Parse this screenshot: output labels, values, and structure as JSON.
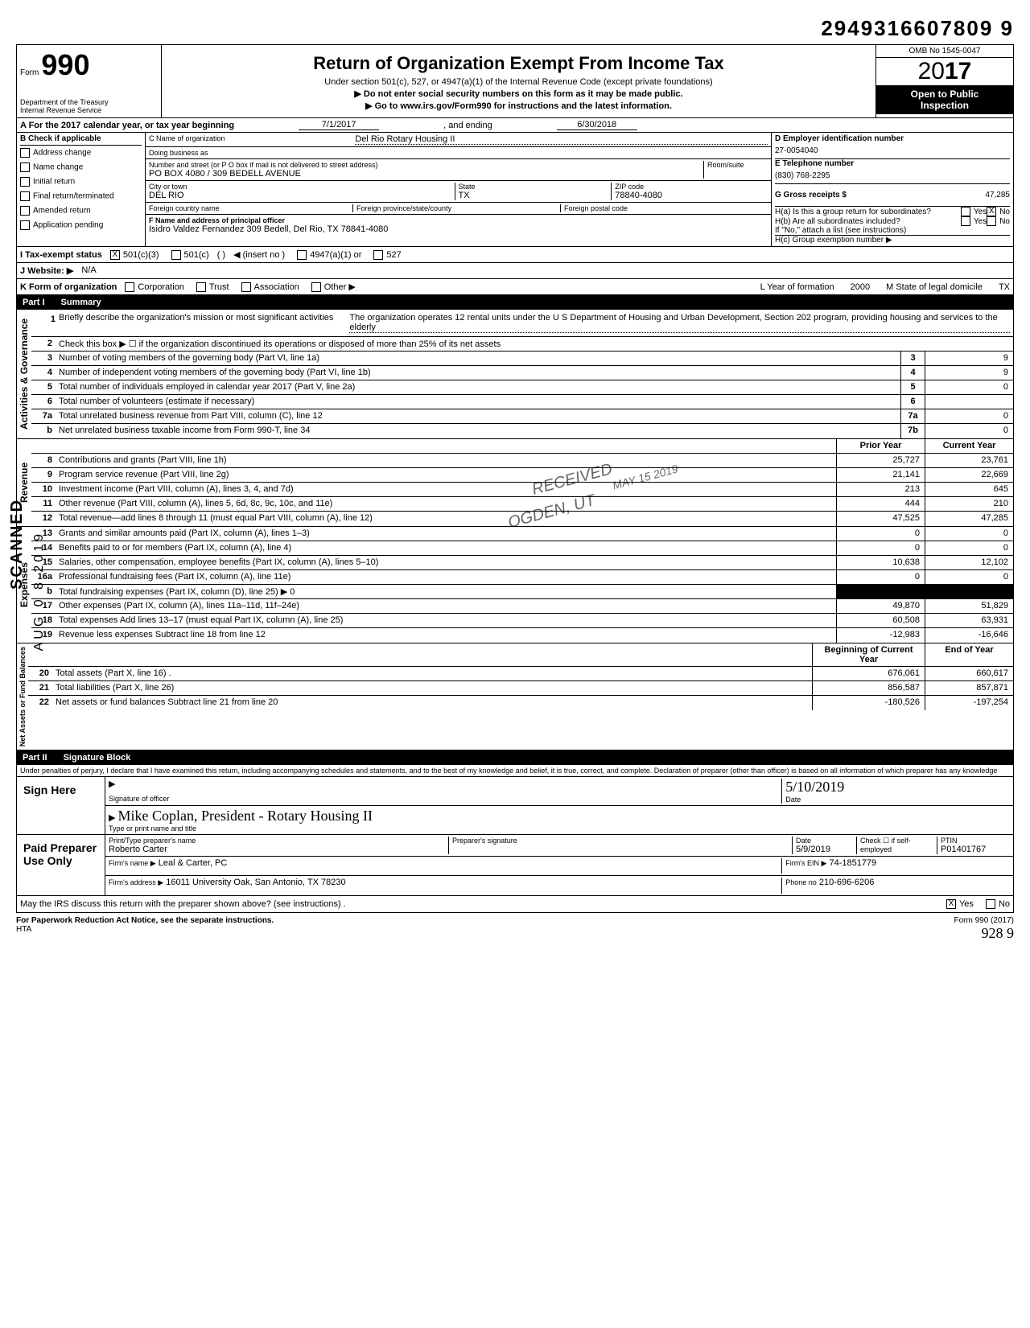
{
  "topNumber": "2949316607809 9",
  "form": {
    "prefix": "Form",
    "number": "990",
    "dept": "Department of the Treasury\nInternal Revenue Service",
    "title": "Return of Organization Exempt From Income Tax",
    "subtitle1": "Under section 501(c), 527, or 4947(a)(1) of the Internal Revenue Code (except private foundations)",
    "subtitle2": "▶ Do not enter social security numbers on this form as it may be made public.",
    "subtitle3": "▶ Go to www.irs.gov/Form990 for instructions and the latest information.",
    "omb": "OMB No 1545-0047",
    "year": "2017",
    "openPublic1": "Open to Public",
    "openPublic2": "Inspection"
  },
  "sectionA": {
    "label": "A   For the 2017 calendar year, or tax year beginning",
    "begin": "7/1/2017",
    "mid": ", and ending",
    "end": "6/30/2018"
  },
  "sectionB": {
    "heading": "B  Check if applicable",
    "items": [
      "Address change",
      "Name change",
      "Initial return",
      "Final return/terminated",
      "Amended return",
      "Application pending"
    ]
  },
  "sectionC": {
    "nameLabel": "C  Name of organization",
    "name": "Del Rio Rotary Housing II",
    "dbaLabel": "Doing business as",
    "streetLabel": "Number and street (or P O  box if mail is not delivered to street address)",
    "roomLabel": "Room/suite",
    "street": "PO BOX 4080 / 309 BEDELL AVENUE",
    "cityLabel": "City or town",
    "city": "DEL RIO",
    "stateLabel": "State",
    "state": "TX",
    "zipLabel": "ZIP code",
    "zip": "78840-4080",
    "foreignCountryLabel": "Foreign country name",
    "foreignProvLabel": "Foreign province/state/county",
    "foreignPostalLabel": "Foreign postal code",
    "officerLabel": "F  Name and address of principal officer",
    "officer": "Isidro Valdez Fernandez 309 Bedell, Del Rio, TX  78841-4080"
  },
  "sectionD": {
    "einLabel": "D   Employer identification number",
    "ein": "27-0054040",
    "phoneLabel": "E   Telephone number",
    "phone": "(830) 768-2295",
    "grossLabel": "G   Gross receipts $",
    "gross": "47,285",
    "haLabel": "H(a) Is this a group return for subordinates?",
    "hbLabel": "H(b) Are all subordinates included?",
    "hNote": "If \"No,\" attach a list (see instructions)",
    "hcLabel": "H(c) Group exemption number ▶",
    "yes": "Yes",
    "no": "No"
  },
  "sectionI": {
    "label": "I   Tax-exempt status",
    "opt1": "501(c)(3)",
    "opt2": "501(c)",
    "insert": "◀ (insert no )",
    "opt3": "4947(a)(1) or",
    "opt4": "527"
  },
  "sectionJ": {
    "label": "J  Website: ▶",
    "value": "N/A"
  },
  "sectionK": {
    "label": "K  Form of organization",
    "opts": [
      "Corporation",
      "Trust",
      "Association",
      "Other ▶"
    ],
    "yearLabel": "L Year of formation",
    "year": "2000",
    "stateLabel": "M State of legal domicile",
    "state": "TX"
  },
  "part1": {
    "header": "Part I",
    "title": "Summary",
    "sideLabels": [
      "Activities & Governance",
      "Revenue",
      "Expenses",
      "Net Assets or\nFund Balances"
    ],
    "mission": "Briefly describe the organization's mission or most significant activities",
    "missionText": "The organization operates 12 rental units under the U S  Department of Housing and Urban Development, Section 202 program, providing housing and services to the elderly",
    "line2": "Check this box  ▶ ☐  if the organization discontinued its operations or disposed of more than 25% of its net assets",
    "priorHeader": "Prior Year",
    "currentHeader": "Current Year",
    "beginHeader": "Beginning of Current Year",
    "endHeader": "End of Year",
    "rows": [
      {
        "n": "3",
        "desc": "Number of voting members of the governing body (Part VI, line 1a)",
        "lbl": "3",
        "cur": "9"
      },
      {
        "n": "4",
        "desc": "Number of independent voting members of the governing body (Part VI, line 1b)",
        "lbl": "4",
        "cur": "9"
      },
      {
        "n": "5",
        "desc": "Total number of individuals employed in calendar year 2017 (Part V, line 2a)",
        "lbl": "5",
        "cur": "0"
      },
      {
        "n": "6",
        "desc": "Total number of volunteers (estimate if necessary)",
        "lbl": "6",
        "cur": ""
      },
      {
        "n": "7a",
        "desc": "Total unrelated business revenue from Part VIII, column (C), line 12",
        "lbl": "7a",
        "cur": "0"
      },
      {
        "n": "b",
        "desc": "Net unrelated business taxable income from Form 990-T, line 34",
        "lbl": "7b",
        "cur": "0"
      }
    ],
    "revRows": [
      {
        "n": "8",
        "desc": "Contributions and grants (Part VIII, line 1h)",
        "prior": "25,727",
        "cur": "23,761"
      },
      {
        "n": "9",
        "desc": "Program service revenue (Part VIII, line 2g)",
        "prior": "21,141",
        "cur": "22,669"
      },
      {
        "n": "10",
        "desc": "Investment income (Part VIII, column (A), lines 3, 4, and 7d)",
        "prior": "213",
        "cur": "645"
      },
      {
        "n": "11",
        "desc": "Other revenue (Part VIII, column (A), lines 5, 6d, 8c, 9c, 10c, and 11e)",
        "prior": "444",
        "cur": "210"
      },
      {
        "n": "12",
        "desc": "Total revenue—add lines 8 through 11 (must equal Part VIII, column (A), line 12)",
        "prior": "47,525",
        "cur": "47,285"
      }
    ],
    "expRows": [
      {
        "n": "13",
        "desc": "Grants and similar amounts paid (Part IX, column (A), lines 1–3)",
        "prior": "0",
        "cur": "0"
      },
      {
        "n": "14",
        "desc": "Benefits paid to or for members (Part IX, column (A), line 4)",
        "prior": "0",
        "cur": "0"
      },
      {
        "n": "15",
        "desc": "Salaries, other compensation, employee benefits (Part IX, column (A), lines 5–10)",
        "prior": "10,638",
        "cur": "12,102"
      },
      {
        "n": "16a",
        "desc": "Professional fundraising fees (Part IX, column (A), line 11e)",
        "prior": "0",
        "cur": "0"
      },
      {
        "n": "b",
        "desc": "Total fundraising expenses (Part IX, column (D), line 25)  ▶                                     0",
        "prior": "",
        "cur": ""
      },
      {
        "n": "17",
        "desc": "Other expenses (Part IX, column (A), lines 11a–11d, 11f–24e)",
        "prior": "49,870",
        "cur": "51,829"
      },
      {
        "n": "18",
        "desc": "Total expenses  Add lines 13–17 (must equal Part IX, column (A), line 25)",
        "prior": "60,508",
        "cur": "63,931"
      },
      {
        "n": "19",
        "desc": "Revenue less expenses  Subtract line 18 from line 12",
        "prior": "-12,983",
        "cur": "-16,646"
      }
    ],
    "netRows": [
      {
        "n": "20",
        "desc": "Total assets (Part X, line 16) .",
        "prior": "676,061",
        "cur": "660,617"
      },
      {
        "n": "21",
        "desc": "Total liabilities (Part X, line 26)",
        "prior": "856,587",
        "cur": "857,871"
      },
      {
        "n": "22",
        "desc": "Net assets or fund balances  Subtract line 21 from line 20",
        "prior": "-180,526",
        "cur": "-197,254"
      }
    ]
  },
  "part2": {
    "header": "Part II",
    "title": "Signature Block",
    "perjury": "Under penalties of perjury, I declare that I have examined this return, including accompanying schedules and statements, and to the best of my knowledge and belief, it is true, correct, and complete. Declaration of preparer (other than officer) is based on all information of which preparer has any knowledge",
    "signHere": "Sign Here",
    "sigOfficerLabel": "Signature of officer",
    "dateLabel": "Date",
    "sigDate": "5/10/2019",
    "typedName": "Mike Coplan, President - Rotary Housing II",
    "typedLabel": "Type or print name and title",
    "paidLabel": "Paid Preparer Use Only",
    "prepNameLabel": "Print/Type preparer's name",
    "prepName": "Roberto Carter",
    "prepSigLabel": "Preparer's signature",
    "prepDateLabel": "Date",
    "prepDate": "5/9/2019",
    "checkIf": "Check ☐ if self-employed",
    "ptinLabel": "PTIN",
    "ptin": "P01401767",
    "firmNameLabel": "Firm's name   ▶",
    "firmName": "Leal & Carter, PC",
    "firmEinLabel": "Firm's EIN ▶",
    "firmEin": "74-1851779",
    "firmAddrLabel": "Firm's address  ▶",
    "firmAddr": "16011 University Oak, San Antonio, TX 78230",
    "phoneNoLabel": "Phone no",
    "phoneNo": "210-696-6206",
    "discuss": "May the IRS discuss this return with the preparer shown above? (see instructions) .",
    "yes": "Yes",
    "no": "No"
  },
  "footer": {
    "left": "For Paperwork Reduction Act Notice, see the separate instructions.",
    "hta": "HTA",
    "right": "Form 990 (2017)",
    "handnum": "928  9"
  },
  "sideText": {
    "scanned": "SCANNED",
    "aug": "AUG 0 8 2019"
  },
  "stamps": {
    "received": "RECEIVED",
    "may": "MAY 15 2019",
    "ogden": "OGDEN, UT"
  }
}
